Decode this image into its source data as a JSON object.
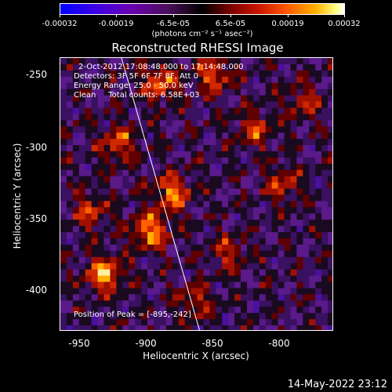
{
  "colorbar": {
    "ticks": [
      "-0.00032",
      "-0.00019",
      "-6.5e-05",
      "6.5e-05",
      "0.00019",
      "0.00032"
    ],
    "units": "(photons cm⁻² s⁻¹ asec⁻²)",
    "colors": [
      "#0000ff",
      "#6a00b0",
      "#000000",
      "#cc1500",
      "#ff5a00",
      "#ffb000",
      "#ffffff"
    ]
  },
  "title": "Reconstructed RHESSI Image",
  "annotations": {
    "line1": "2-Oct-2012 17:08:48.000 to 17:14:48.000",
    "line2": "Detectors: 3F 5F 6F 7F 8F, Att 0",
    "line3": "Energy Range: 25.0 - 50.0 keV",
    "line4": "Clean     Total counts: 6.58E+03",
    "peak": "Position of Peak = [-895,-242]"
  },
  "axes": {
    "xlabel": "Heliocentric X (arcsec)",
    "ylabel": "Heliocentric Y (arcsec)",
    "x_ticks": [
      "-950",
      "-900",
      "-850",
      "-800"
    ],
    "y_ticks": [
      "-250",
      "-300",
      "-350",
      "-400"
    ]
  },
  "timestamp": "14-May-2022 23:12"
}
